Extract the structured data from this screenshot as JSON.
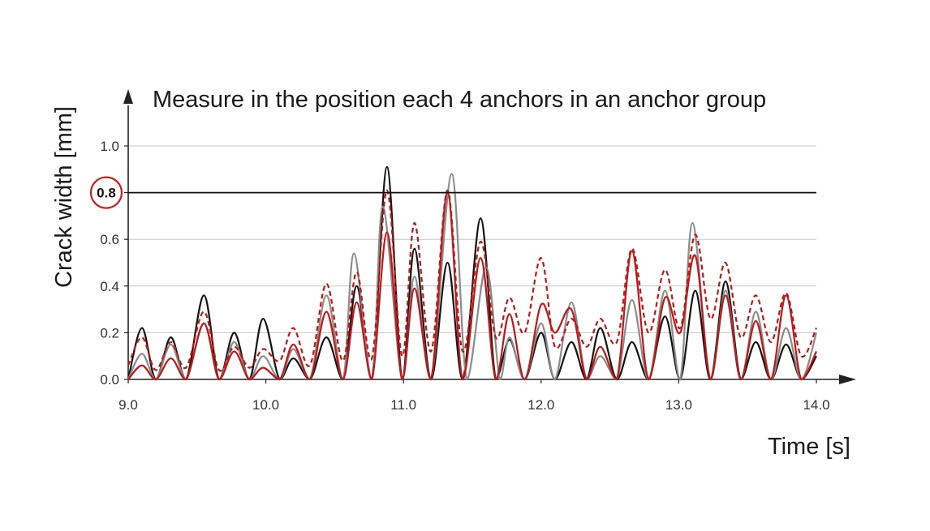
{
  "colors": {
    "black": "#141414",
    "gray": "#8c8c8c",
    "red": "#c01818",
    "highlight": "#c81e1e",
    "grid": "#c8c8c8"
  },
  "chart_data": {
    "type": "line",
    "title": "Measure in the position each 4 anchors in an anchor group",
    "xlabel": "Time [s]",
    "ylabel": "Crack width [mm]",
    "xlim": [
      9.0,
      14.0
    ],
    "ylim": [
      0.0,
      1.0
    ],
    "x_ticks": [
      "9.0",
      "10.0",
      "11.0",
      "12.0",
      "13.0",
      "14.0"
    ],
    "y_ticks": [
      "0.0",
      "0.2",
      "0.4",
      "0.6",
      "0.8",
      "1.0"
    ],
    "grid": "horizontal",
    "threshold": {
      "value": 0.8,
      "label": "0.8",
      "highlighted": true
    },
    "series": [
      {
        "style": "solid",
        "color": "black",
        "x": [
          9.0,
          9.1,
          9.2,
          9.31,
          9.42,
          9.55,
          9.66,
          9.77,
          9.88,
          9.98,
          10.1,
          10.2,
          10.32,
          10.44,
          10.56,
          10.66,
          10.77,
          10.88,
          10.99,
          11.08,
          11.2,
          11.32,
          11.43,
          11.56,
          11.67,
          11.77,
          11.88,
          12.0,
          12.1,
          12.22,
          12.33,
          12.43,
          12.55,
          12.66,
          12.78,
          12.9,
          13.01,
          13.12,
          13.23,
          13.34,
          13.45,
          13.56,
          13.67,
          13.78,
          13.89,
          14.0
        ],
        "y": [
          0.0,
          0.22,
          0.0,
          0.18,
          0.0,
          0.36,
          0.0,
          0.2,
          0.0,
          0.26,
          0.0,
          0.09,
          0.0,
          0.18,
          0.0,
          0.4,
          0.0,
          0.91,
          0.0,
          0.56,
          0.0,
          0.5,
          0.0,
          0.69,
          0.0,
          0.17,
          0.0,
          0.2,
          0.0,
          0.16,
          0.0,
          0.22,
          0.0,
          0.16,
          0.0,
          0.27,
          0.0,
          0.38,
          0.0,
          0.42,
          0.0,
          0.16,
          0.0,
          0.15,
          0.0,
          0.1
        ]
      },
      {
        "style": "solid",
        "color": "gray",
        "x": [
          9.0,
          9.1,
          9.2,
          9.31,
          9.42,
          9.55,
          9.66,
          9.77,
          9.88,
          9.98,
          10.1,
          10.2,
          10.32,
          10.44,
          10.56,
          10.64,
          10.77,
          10.85,
          10.99,
          11.08,
          11.2,
          11.35,
          11.46,
          11.6,
          11.7,
          11.77,
          11.88,
          12.0,
          12.1,
          12.22,
          12.33,
          12.43,
          12.55,
          12.66,
          12.78,
          12.9,
          13.01,
          13.1,
          13.23,
          13.34,
          13.45,
          13.56,
          13.67,
          13.78,
          13.89,
          14.0
        ],
        "y": [
          0.0,
          0.11,
          0.0,
          0.15,
          0.0,
          0.24,
          0.0,
          0.16,
          0.0,
          0.1,
          0.0,
          0.13,
          0.0,
          0.36,
          0.0,
          0.54,
          0.0,
          0.74,
          0.0,
          0.44,
          0.0,
          0.88,
          0.0,
          0.48,
          0.0,
          0.18,
          0.0,
          0.24,
          0.0,
          0.33,
          0.0,
          0.1,
          0.0,
          0.34,
          0.0,
          0.38,
          0.0,
          0.67,
          0.0,
          0.38,
          0.0,
          0.29,
          0.0,
          0.22,
          0.0,
          0.2
        ]
      },
      {
        "style": "dashed",
        "color": "red",
        "x": [
          9.0,
          9.1,
          9.2,
          9.31,
          9.42,
          9.55,
          9.66,
          9.77,
          9.88,
          9.98,
          10.1,
          10.2,
          10.32,
          10.44,
          10.56,
          10.66,
          10.77,
          10.88,
          10.99,
          11.08,
          11.2,
          11.32,
          11.43,
          11.56,
          11.67,
          11.77,
          11.88,
          12.0,
          12.1,
          12.22,
          12.33,
          12.43,
          12.55,
          12.66,
          12.78,
          12.9,
          13.01,
          13.12,
          13.23,
          13.34,
          13.45,
          13.56,
          13.67,
          13.78,
          13.89,
          14.0
        ],
        "y": [
          0.06,
          0.18,
          0.04,
          0.16,
          0.05,
          0.29,
          0.04,
          0.14,
          0.05,
          0.13,
          0.08,
          0.22,
          0.06,
          0.41,
          0.08,
          0.46,
          0.09,
          0.81,
          0.1,
          0.67,
          0.12,
          0.81,
          0.12,
          0.59,
          0.18,
          0.35,
          0.2,
          0.52,
          0.14,
          0.26,
          0.14,
          0.26,
          0.16,
          0.56,
          0.2,
          0.47,
          0.22,
          0.62,
          0.26,
          0.5,
          0.18,
          0.36,
          0.16,
          0.37,
          0.1,
          0.22
        ]
      },
      {
        "style": "solid",
        "color": "red",
        "x": [
          9.0,
          9.1,
          9.2,
          9.31,
          9.42,
          9.55,
          9.66,
          9.77,
          9.88,
          9.98,
          10.1,
          10.2,
          10.32,
          10.44,
          10.56,
          10.66,
          10.77,
          10.88,
          10.99,
          11.08,
          11.2,
          11.32,
          11.43,
          11.56,
          11.67,
          11.77,
          11.88,
          12.0,
          12.1,
          12.22,
          12.33,
          12.43,
          12.55,
          12.66,
          12.78,
          12.9,
          13.01,
          13.12,
          13.23,
          13.34,
          13.45,
          13.56,
          13.67,
          13.78,
          13.89,
          14.0
        ],
        "y": [
          0.0,
          0.06,
          0.0,
          0.09,
          0.0,
          0.24,
          0.0,
          0.12,
          0.0,
          0.05,
          0.0,
          0.15,
          0.0,
          0.29,
          0.0,
          0.33,
          0.0,
          0.63,
          0.0,
          0.39,
          0.0,
          0.8,
          0.0,
          0.52,
          0.0,
          0.28,
          0.0,
          0.32,
          0.2,
          0.3,
          0.0,
          0.14,
          0.0,
          0.55,
          0.0,
          0.35,
          0.2,
          0.53,
          0.0,
          0.36,
          0.0,
          0.25,
          0.0,
          0.36,
          0.0,
          0.12
        ]
      }
    ]
  }
}
